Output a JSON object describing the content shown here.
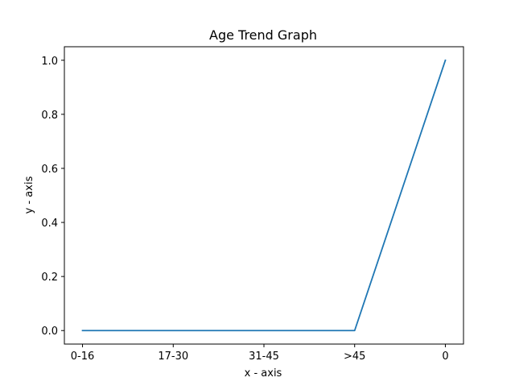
{
  "chart_data": {
    "type": "line",
    "title": "Age Trend Graph",
    "xlabel": "x - axis",
    "ylabel": "y - axis",
    "categories": [
      "0-16",
      "17-30",
      "31-45",
      ">45",
      "0"
    ],
    "series": [
      {
        "values": [
          0,
          0,
          0,
          0,
          1
        ],
        "color": "#1f77b4"
      }
    ],
    "ylim": [
      -0.05,
      1.05
    ],
    "yticks": [
      0.0,
      0.2,
      0.4,
      0.6,
      0.8,
      1.0
    ],
    "ytick_labels": [
      "0.0",
      "0.2",
      "0.4",
      "0.6",
      "0.8",
      "1.0"
    ],
    "grid": false,
    "legend": "none"
  }
}
